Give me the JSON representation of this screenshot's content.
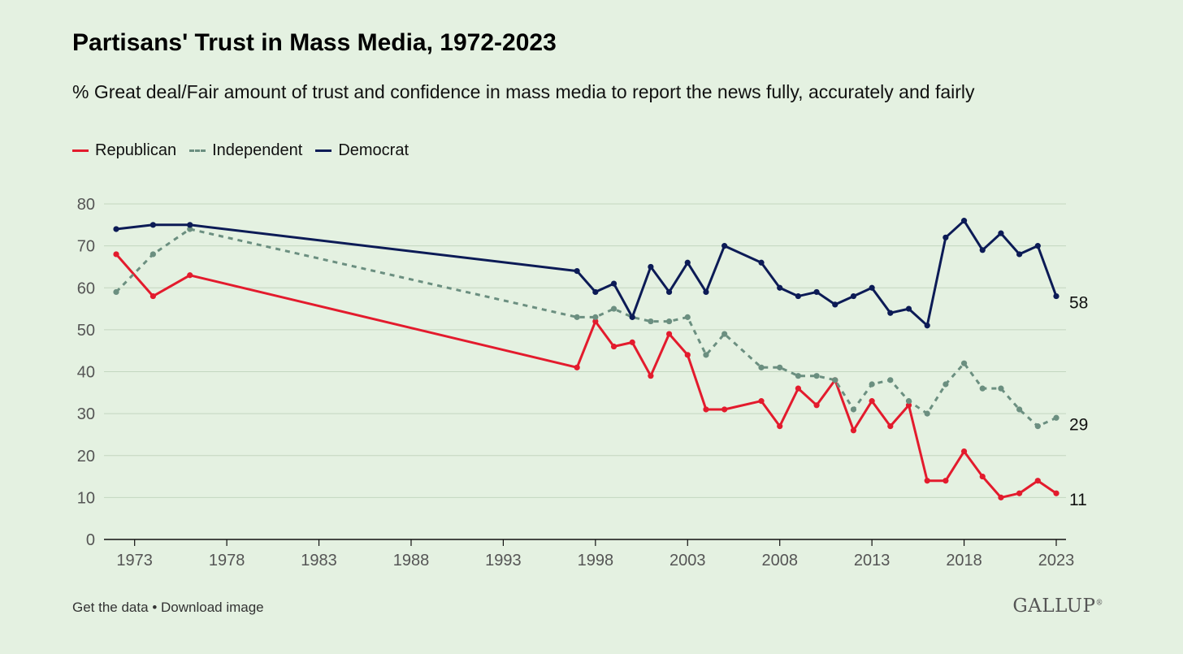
{
  "header": {
    "title": "Partisans' Trust in Mass Media, 1972-2023",
    "subtitle": "% Great deal/Fair amount of trust and confidence in mass media to report the news fully, accurately and fairly"
  },
  "legend": {
    "items": [
      {
        "label": "Republican",
        "color": "#e31b2d",
        "style": "solid"
      },
      {
        "label": "Independent",
        "color": "#6b8f80",
        "style": "dashed"
      },
      {
        "label": "Democrat",
        "color": "#0c1b56",
        "style": "solid"
      }
    ]
  },
  "footer": {
    "get_data": "Get the data",
    "separator": "•",
    "download": "Download image",
    "logo": "GALLUP"
  },
  "chart_data": {
    "type": "line",
    "x_ticks": [
      1973,
      1978,
      1983,
      1988,
      1993,
      1998,
      2003,
      2008,
      2013,
      2018,
      2023
    ],
    "y_ticks": [
      0,
      10,
      20,
      30,
      40,
      50,
      60,
      70,
      80
    ],
    "xlim": [
      1972,
      2023
    ],
    "ylim": [
      0,
      80
    ],
    "grid": "horizontal",
    "series": [
      {
        "name": "Republican",
        "color": "#e31b2d",
        "style": "solid",
        "end_label": "11",
        "x": [
          1972,
          1974,
          1976,
          1997,
          1998,
          1999,
          2000,
          2001,
          2002,
          2003,
          2004,
          2005,
          2007,
          2008,
          2009,
          2010,
          2011,
          2012,
          2013,
          2014,
          2015,
          2016,
          2017,
          2018,
          2019,
          2020,
          2021,
          2022,
          2023
        ],
        "y": [
          68,
          58,
          63,
          41,
          52,
          46,
          47,
          39,
          49,
          44,
          31,
          31,
          33,
          27,
          36,
          32,
          38,
          26,
          33,
          27,
          32,
          14,
          14,
          21,
          15,
          10,
          11,
          14,
          11
        ]
      },
      {
        "name": "Independent",
        "color": "#6b8f80",
        "style": "dashed",
        "end_label": "29",
        "x": [
          1972,
          1974,
          1976,
          1997,
          1998,
          1999,
          2000,
          2001,
          2002,
          2003,
          2004,
          2005,
          2007,
          2008,
          2009,
          2010,
          2011,
          2012,
          2013,
          2014,
          2015,
          2016,
          2017,
          2018,
          2019,
          2020,
          2021,
          2022,
          2023
        ],
        "y": [
          59,
          68,
          74,
          53,
          53,
          55,
          53,
          52,
          52,
          53,
          44,
          49,
          41,
          41,
          39,
          39,
          38,
          31,
          37,
          38,
          33,
          30,
          37,
          42,
          36,
          36,
          31,
          27,
          29
        ]
      },
      {
        "name": "Democrat",
        "color": "#0c1b56",
        "style": "solid",
        "end_label": "58",
        "x": [
          1972,
          1974,
          1976,
          1997,
          1998,
          1999,
          2000,
          2001,
          2002,
          2003,
          2004,
          2005,
          2007,
          2008,
          2009,
          2010,
          2011,
          2012,
          2013,
          2014,
          2015,
          2016,
          2017,
          2018,
          2019,
          2020,
          2021,
          2022,
          2023
        ],
        "y": [
          74,
          75,
          75,
          64,
          59,
          61,
          53,
          65,
          59,
          66,
          59,
          70,
          66,
          60,
          58,
          59,
          56,
          58,
          60,
          54,
          55,
          51,
          72,
          76,
          69,
          73,
          68,
          70,
          58
        ]
      }
    ]
  }
}
